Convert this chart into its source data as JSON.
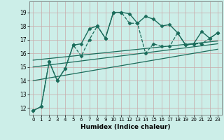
{
  "xlabel": "Humidex (Indice chaleur)",
  "background_color": "#cceee8",
  "grid_color": "#c8aaaa",
  "line_color": "#1a6b5a",
  "xlim": [
    -0.5,
    23.5
  ],
  "ylim": [
    11.5,
    19.8
  ],
  "xticks": [
    0,
    1,
    2,
    3,
    4,
    5,
    6,
    7,
    8,
    9,
    10,
    11,
    12,
    13,
    14,
    15,
    16,
    17,
    18,
    19,
    20,
    21,
    22,
    23
  ],
  "yticks": [
    12,
    13,
    14,
    15,
    16,
    17,
    18,
    19
  ],
  "series": [
    {
      "x": [
        0,
        1,
        2,
        3,
        4,
        5,
        6,
        7,
        8,
        9,
        10,
        11,
        12,
        13,
        14,
        15,
        16,
        17,
        18,
        19,
        20,
        21,
        22,
        23
      ],
      "y": [
        11.8,
        12.1,
        15.4,
        14.0,
        14.9,
        16.6,
        16.7,
        17.8,
        18.0,
        17.1,
        19.0,
        19.0,
        18.9,
        18.2,
        18.7,
        18.5,
        18.0,
        18.1,
        17.5,
        16.6,
        16.7,
        17.6,
        17.1,
        17.5
      ],
      "marker": "D",
      "markersize": 2.5,
      "linestyle": "-",
      "linewidth": 1.0
    },
    {
      "x": [
        0,
        1,
        2,
        3,
        4,
        5,
        6,
        7,
        8,
        9,
        10,
        11,
        12,
        13,
        14,
        15,
        16,
        17,
        18,
        19,
        20,
        21,
        22,
        23
      ],
      "y": [
        11.8,
        12.1,
        15.4,
        14.0,
        14.9,
        16.6,
        15.8,
        17.0,
        18.0,
        17.1,
        19.0,
        19.0,
        18.2,
        18.2,
        16.0,
        16.7,
        16.5,
        16.5,
        17.5,
        16.6,
        16.7,
        16.7,
        17.1,
        17.5
      ],
      "marker": "D",
      "markersize": 2.5,
      "linestyle": "--",
      "linewidth": 0.9
    },
    {
      "x": [
        0,
        23
      ],
      "y": [
        15.5,
        16.9
      ],
      "marker": null,
      "linestyle": "-",
      "linewidth": 0.9
    },
    {
      "x": [
        0,
        23
      ],
      "y": [
        15.0,
        16.7
      ],
      "marker": null,
      "linestyle": "-",
      "linewidth": 0.9
    },
    {
      "x": [
        0,
        23
      ],
      "y": [
        14.0,
        16.3
      ],
      "marker": null,
      "linestyle": "-",
      "linewidth": 0.9
    }
  ]
}
